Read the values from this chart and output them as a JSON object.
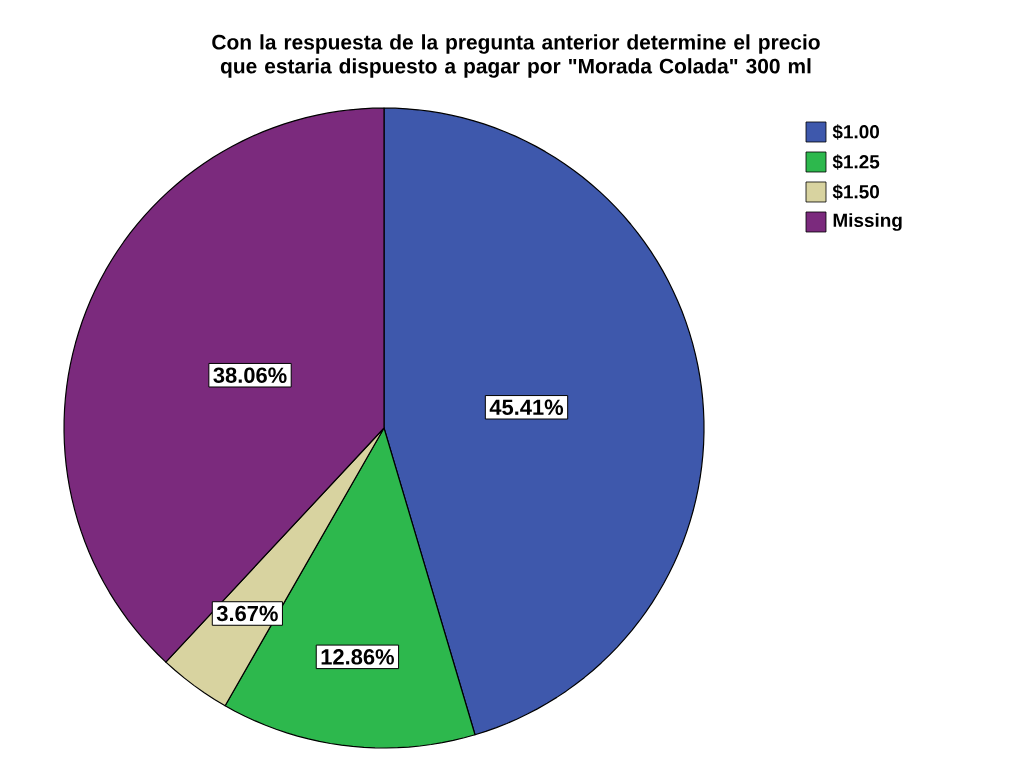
{
  "chart_data": {
    "type": "pie",
    "title": "Con la respuesta de la pregunta anterior determine el precio que estaria dispuesto a pagar por \"Morada Colada\" 300 ml",
    "categories": [
      "$1.00",
      "$1.25",
      "$1.50",
      "Missing"
    ],
    "values": [
      45.41,
      12.86,
      3.67,
      38.06
    ],
    "colors": [
      "#3e58ac",
      "#2db84d",
      "#d8d3a0",
      "#7b2a7d"
    ],
    "value_labels": [
      "45.41%",
      "12.86%",
      "3.67%",
      "38.06%"
    ],
    "legend": "top right"
  }
}
